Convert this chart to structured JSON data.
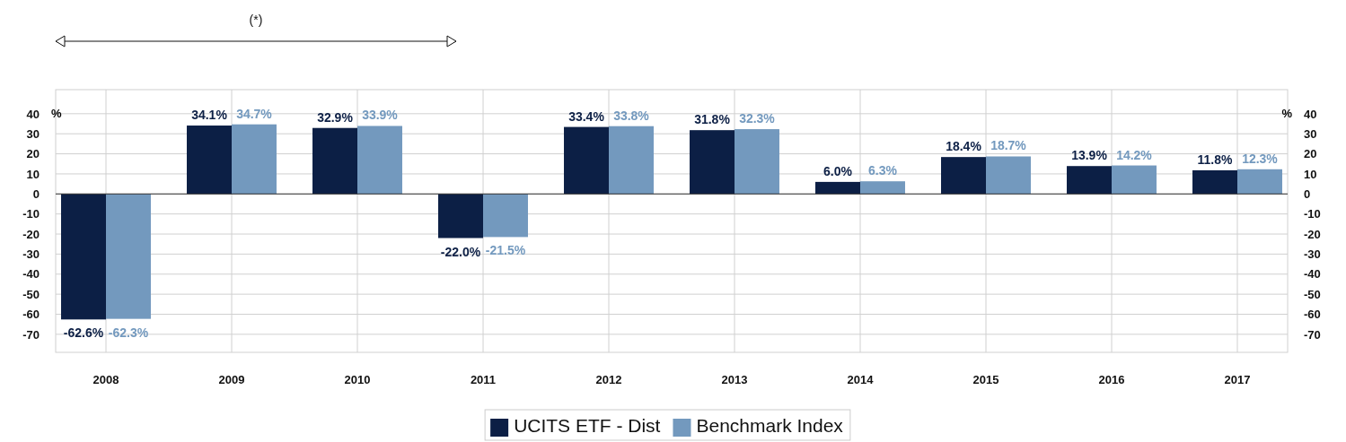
{
  "chart_data": {
    "type": "bar",
    "categories": [
      "2008",
      "2009",
      "2010",
      "2011",
      "2012",
      "2013",
      "2014",
      "2015",
      "2016",
      "2017"
    ],
    "series": [
      {
        "name": "UCITS ETF - Dist",
        "color": "#0c1f45",
        "values": [
          -62.6,
          34.1,
          32.9,
          -22.0,
          33.4,
          31.8,
          6.0,
          18.4,
          13.9,
          11.8
        ],
        "value_labels": [
          "-62.6%",
          "34.1%",
          "32.9%",
          "-22.0%",
          "33.4%",
          "31.8%",
          "6.0%",
          "18.4%",
          "13.9%",
          "11.8%"
        ]
      },
      {
        "name": "Benchmark Index",
        "color": "#7399be",
        "values": [
          -62.3,
          34.7,
          33.9,
          -21.5,
          33.8,
          32.3,
          6.3,
          18.7,
          14.2,
          12.3
        ],
        "value_labels": [
          "-62.3%",
          "34.7%",
          "33.9%",
          "-21.5%",
          "33.8%",
          "32.3%",
          "6.3%",
          "18.7%",
          "14.2%",
          "12.3%"
        ]
      }
    ],
    "ylabel": "%",
    "y2label": "%",
    "ylim": [
      -79,
      52
    ],
    "yticks": [
      -70,
      -60,
      -50,
      -40,
      -30,
      -20,
      -10,
      0,
      10,
      20,
      30,
      40
    ],
    "y2lim": [
      -79,
      52
    ],
    "y2ticks": [
      -70,
      -60,
      -50,
      -40,
      -30,
      -20,
      -10,
      0,
      10,
      20,
      30,
      40
    ],
    "grid": true,
    "legend": "bottom",
    "annotations": [
      "(*)"
    ]
  }
}
